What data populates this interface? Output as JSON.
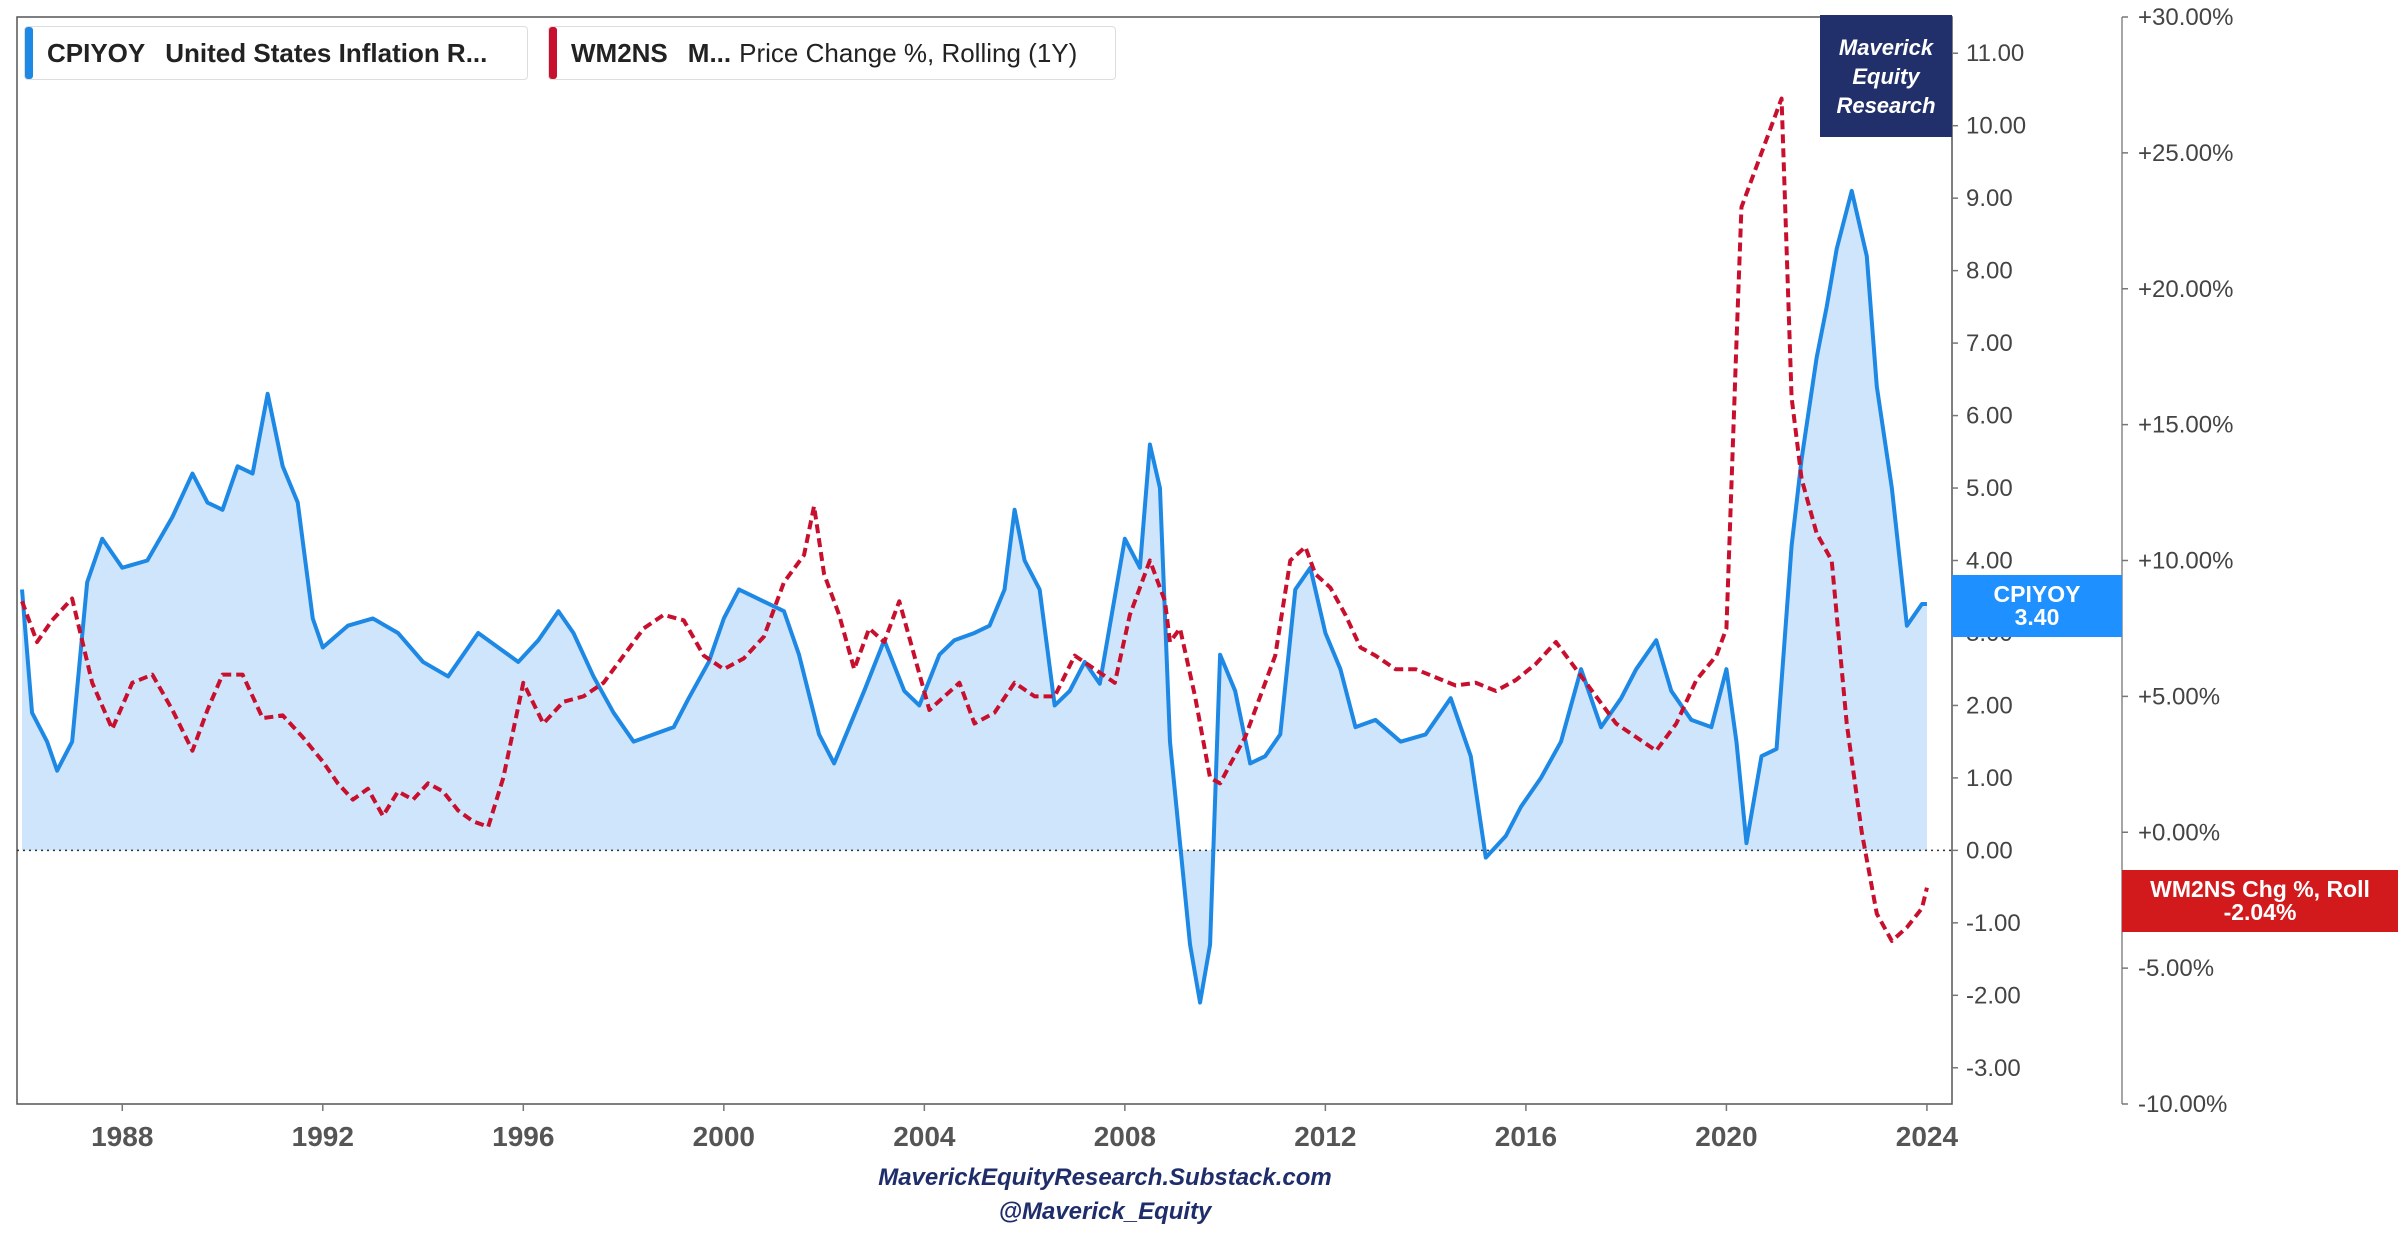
{
  "legend": [
    {
      "ticker": "CPIYOY",
      "name": "United States Inflation R...",
      "extra": "",
      "color": "#1e88e5"
    },
    {
      "ticker": "WM2NS",
      "name": "M...",
      "extra": "Price Change %, Rolling (1Y)",
      "color": "#c8102e"
    }
  ],
  "brand": {
    "line1": "Maverick",
    "line2": "Equity",
    "line3": "Research"
  },
  "tags": {
    "cpi": {
      "label": "CPIYOY",
      "value": "3.40"
    },
    "m2": {
      "label": "WM2NS Chg %, Roll",
      "value": "-2.04%"
    }
  },
  "footer": {
    "line1": "MaverickEquityResearch.Substack.com",
    "line2": "@Maverick_Equity"
  },
  "chart_data": {
    "type": "line",
    "x_ticks": [
      "1988",
      "1992",
      "1996",
      "2000",
      "2004",
      "2008",
      "2012",
      "2016",
      "2020",
      "2024"
    ],
    "y_left_ticks": [
      "11.00",
      "10.00",
      "9.00",
      "8.00",
      "7.00",
      "6.00",
      "5.00",
      "4.00",
      "3.00",
      "2.00",
      "1.00",
      "0.00",
      "-1.00",
      "-2.00",
      "-3.00"
    ],
    "y_right_ticks": [
      "+30.00%",
      "+25.00%",
      "+20.00%",
      "+15.00%",
      "+10.00%",
      "+5.00%",
      "+0.00%",
      "-5.00%",
      "-10.00%"
    ],
    "xlim": [
      1985.9,
      2024.5
    ],
    "ylim_left": [
      -3.5,
      11.5
    ],
    "ylim_right": [
      -10,
      30
    ],
    "series": [
      {
        "name": "CPIYOY",
        "axis": "left",
        "color": "#1e88e5",
        "fill": "#cfe5fb",
        "x": [
          1986.0,
          1986.2,
          1986.5,
          1986.7,
          1987.0,
          1987.3,
          1987.6,
          1988.0,
          1988.5,
          1989.0,
          1989.4,
          1989.7,
          1990.0,
          1990.3,
          1990.6,
          1990.9,
          1991.2,
          1991.5,
          1991.8,
          1992.0,
          1992.5,
          1993.0,
          1993.5,
          1994.0,
          1994.5,
          1994.8,
          1995.1,
          1995.5,
          1995.9,
          1996.3,
          1996.7,
          1997.0,
          1997.4,
          1997.8,
          1998.2,
          1998.6,
          1999.0,
          1999.3,
          1999.7,
          2000.0,
          2000.3,
          2000.6,
          2000.9,
          2001.2,
          2001.5,
          2001.9,
          2002.2,
          2002.5,
          2002.8,
          2003.2,
          2003.6,
          2003.9,
          2004.3,
          2004.6,
          2005.0,
          2005.3,
          2005.6,
          2005.8,
          2006.0,
          2006.3,
          2006.6,
          2006.9,
          2007.2,
          2007.5,
          2007.8,
          2008.0,
          2008.3,
          2008.5,
          2008.7,
          2008.9,
          2009.1,
          2009.3,
          2009.5,
          2009.7,
          2009.9,
          2010.2,
          2010.5,
          2010.8,
          2011.1,
          2011.4,
          2011.7,
          2012.0,
          2012.3,
          2012.6,
          2013.0,
          2013.5,
          2014.0,
          2014.5,
          2014.9,
          2015.2,
          2015.6,
          2015.9,
          2016.3,
          2016.7,
          2017.1,
          2017.5,
          2017.9,
          2018.2,
          2018.6,
          2018.9,
          2019.3,
          2019.7,
          2020.0,
          2020.2,
          2020.4,
          2020.7,
          2021.0,
          2021.3,
          2021.5,
          2021.8,
          2022.0,
          2022.2,
          2022.5,
          2022.8,
          2023.0,
          2023.3,
          2023.6,
          2023.9,
          2024.0
        ],
        "y": [
          3.6,
          1.9,
          1.5,
          1.1,
          1.5,
          3.7,
          4.3,
          3.9,
          4.0,
          4.6,
          5.2,
          4.8,
          4.7,
          5.3,
          5.2,
          6.3,
          5.3,
          4.8,
          3.2,
          2.8,
          3.1,
          3.2,
          3.0,
          2.6,
          2.4,
          2.7,
          3.0,
          2.8,
          2.6,
          2.9,
          3.3,
          3.0,
          2.4,
          1.9,
          1.5,
          1.6,
          1.7,
          2.1,
          2.6,
          3.2,
          3.6,
          3.5,
          3.4,
          3.3,
          2.7,
          1.6,
          1.2,
          1.7,
          2.2,
          2.9,
          2.2,
          2.0,
          2.7,
          2.9,
          3.0,
          3.1,
          3.6,
          4.7,
          4.0,
          3.6,
          2.0,
          2.2,
          2.6,
          2.3,
          3.5,
          4.3,
          3.9,
          5.6,
          5.0,
          1.5,
          0.1,
          -1.3,
          -2.1,
          -1.3,
          2.7,
          2.2,
          1.2,
          1.3,
          1.6,
          3.6,
          3.9,
          3.0,
          2.5,
          1.7,
          1.8,
          1.5,
          1.6,
          2.1,
          1.3,
          -0.1,
          0.2,
          0.6,
          1.0,
          1.5,
          2.5,
          1.7,
          2.1,
          2.5,
          2.9,
          2.2,
          1.8,
          1.7,
          2.5,
          1.5,
          0.1,
          1.3,
          1.4,
          4.2,
          5.4,
          6.8,
          7.5,
          8.3,
          9.1,
          8.2,
          6.4,
          5.0,
          3.1,
          3.4,
          3.4
        ]
      },
      {
        "name": "WM2NS",
        "axis": "right",
        "color": "#c8102e",
        "dashed": true,
        "x": [
          1986.0,
          1986.3,
          1986.6,
          1987.0,
          1987.4,
          1987.8,
          1988.2,
          1988.6,
          1989.0,
          1989.4,
          1989.7,
          1990.0,
          1990.4,
          1990.8,
          1991.2,
          1991.6,
          1992.0,
          1992.3,
          1992.6,
          1992.9,
          1993.2,
          1993.5,
          1993.8,
          1994.1,
          1994.4,
          1994.7,
          1995.0,
          1995.3,
          1995.6,
          1996.0,
          1996.4,
          1996.8,
          1997.2,
          1997.6,
          1998.0,
          1998.4,
          1998.8,
          1999.2,
          1999.6,
          2000.0,
          2000.4,
          2000.8,
          2001.2,
          2001.6,
          2001.8,
          2002.0,
          2002.3,
          2002.6,
          2002.9,
          2003.2,
          2003.5,
          2003.8,
          2004.1,
          2004.4,
          2004.7,
          2005.0,
          2005.4,
          2005.8,
          2006.2,
          2006.6,
          2007.0,
          2007.4,
          2007.8,
          2008.1,
          2008.5,
          2008.8,
          2008.9,
          2009.1,
          2009.4,
          2009.7,
          2009.9,
          2010.1,
          2010.4,
          2010.7,
          2011.0,
          2011.3,
          2011.6,
          2011.8,
          2012.1,
          2012.4,
          2012.7,
          2013.0,
          2013.4,
          2013.8,
          2014.2,
          2014.6,
          2015.0,
          2015.4,
          2015.8,
          2016.2,
          2016.6,
          2017.0,
          2017.4,
          2017.8,
          2018.2,
          2018.6,
          2019.0,
          2019.4,
          2019.8,
          2020.0,
          2020.2,
          2020.3,
          2020.6,
          2020.9,
          2021.1,
          2021.3,
          2021.5,
          2021.8,
          2022.1,
          2022.4,
          2022.7,
          2023.0,
          2023.3,
          2023.6,
          2023.9,
          2024.0
        ],
        "y": [
          8.5,
          7.0,
          7.8,
          8.6,
          5.5,
          3.8,
          5.5,
          5.8,
          4.5,
          3.0,
          4.5,
          5.8,
          5.8,
          4.2,
          4.3,
          3.5,
          2.6,
          1.8,
          1.2,
          1.6,
          0.6,
          1.5,
          1.2,
          1.8,
          1.5,
          0.8,
          0.4,
          0.2,
          2.0,
          5.5,
          4.0,
          4.8,
          5.0,
          5.5,
          6.5,
          7.5,
          8.0,
          7.8,
          6.5,
          6.0,
          6.4,
          7.2,
          9.2,
          10.2,
          12.0,
          9.5,
          8.0,
          6.0,
          7.5,
          7.0,
          8.5,
          6.5,
          4.5,
          5.0,
          5.5,
          4.0,
          4.4,
          5.5,
          5.0,
          5.0,
          6.5,
          6.0,
          5.5,
          8.0,
          10.0,
          8.5,
          7.0,
          7.5,
          5.0,
          2.0,
          1.8,
          2.5,
          3.5,
          5.0,
          6.5,
          10.0,
          10.5,
          9.5,
          9.0,
          8.0,
          6.8,
          6.5,
          6.0,
          6.0,
          5.7,
          5.4,
          5.5,
          5.2,
          5.6,
          6.2,
          7.0,
          6.0,
          5.0,
          4.0,
          3.5,
          3.0,
          4.0,
          5.6,
          6.5,
          7.5,
          18.0,
          23.0,
          24.5,
          26.0,
          27.0,
          16.0,
          13.0,
          11.0,
          10.0,
          4.0,
          0.0,
          -3.0,
          -4.0,
          -3.5,
          -2.8,
          -2.04
        ]
      }
    ]
  }
}
